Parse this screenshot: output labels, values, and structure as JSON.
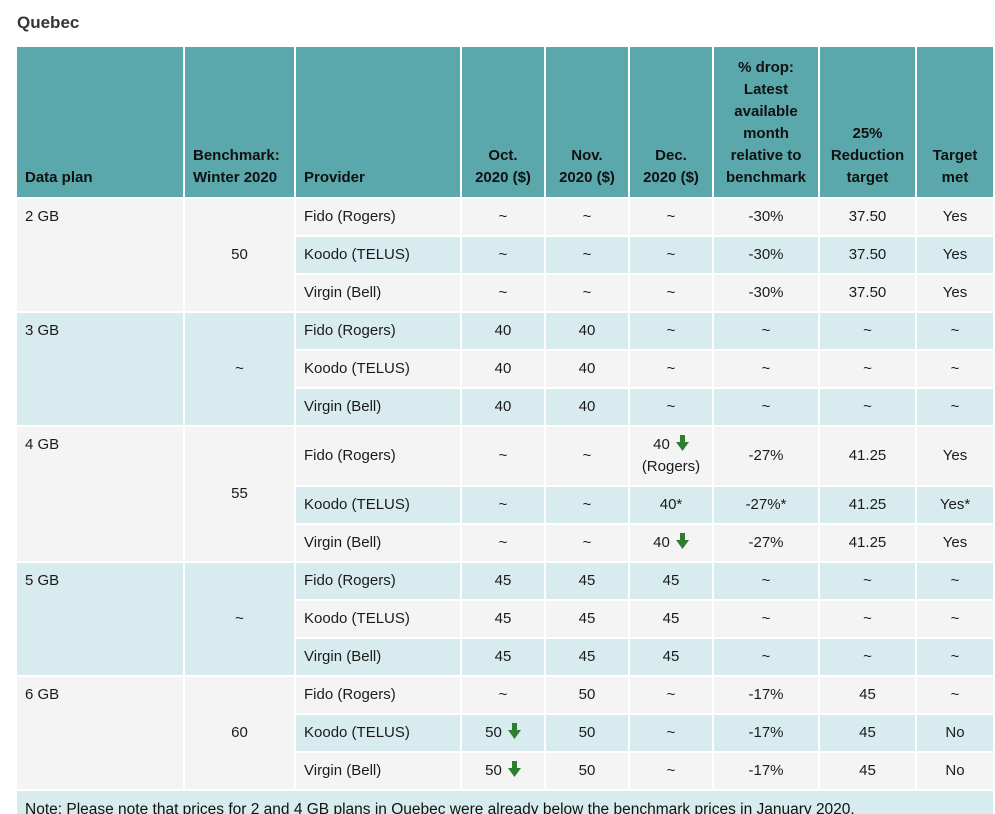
{
  "page": {
    "title": "Quebec"
  },
  "colors": {
    "header_bg": "#5aa7ac",
    "row_gray": "#f4f4f4",
    "row_blue": "#d8ebee",
    "arrow_green": "#2e7d32"
  },
  "icons": {
    "down_arrow": "down-arrow-icon"
  },
  "table": {
    "columns": [
      "Data plan",
      "Benchmark: Winter 2020",
      "Provider",
      "Oct. 2020 ($)",
      "Nov. 2020 ($)",
      "Dec. 2020 ($)",
      "% drop: Latest available month relative to benchmark",
      "25% Reduction target",
      "Target met"
    ],
    "groups": [
      {
        "plan": "2 GB",
        "benchmark": "50",
        "rows": [
          {
            "provider": "Fido (Rogers)",
            "values": [
              {
                "t": "~"
              },
              {
                "t": "~"
              },
              {
                "t": "~"
              },
              {
                "t": "-30%"
              },
              {
                "t": "37.50"
              },
              {
                "t": "Yes"
              }
            ]
          },
          {
            "provider": "Koodo (TELUS)",
            "values": [
              {
                "t": "~"
              },
              {
                "t": "~"
              },
              {
                "t": "~"
              },
              {
                "t": "-30%"
              },
              {
                "t": "37.50"
              },
              {
                "t": "Yes"
              }
            ]
          },
          {
            "provider": "Virgin (Bell)",
            "values": [
              {
                "t": "~"
              },
              {
                "t": "~"
              },
              {
                "t": "~"
              },
              {
                "t": "-30%"
              },
              {
                "t": "37.50"
              },
              {
                "t": "Yes"
              }
            ]
          }
        ]
      },
      {
        "plan": "3 GB",
        "benchmark": "~",
        "rows": [
          {
            "provider": "Fido (Rogers)",
            "values": [
              {
                "t": "40"
              },
              {
                "t": "40"
              },
              {
                "t": "~"
              },
              {
                "t": "~"
              },
              {
                "t": "~"
              },
              {
                "t": "~"
              }
            ]
          },
          {
            "provider": "Koodo (TELUS)",
            "values": [
              {
                "t": "40"
              },
              {
                "t": "40"
              },
              {
                "t": "~"
              },
              {
                "t": "~"
              },
              {
                "t": "~"
              },
              {
                "t": "~"
              }
            ]
          },
          {
            "provider": "Virgin (Bell)",
            "values": [
              {
                "t": "40"
              },
              {
                "t": "40"
              },
              {
                "t": "~"
              },
              {
                "t": "~"
              },
              {
                "t": "~"
              },
              {
                "t": "~"
              }
            ]
          }
        ]
      },
      {
        "plan": "4 GB",
        "benchmark": "55",
        "rows": [
          {
            "provider": "Fido (Rogers)",
            "values": [
              {
                "t": "~"
              },
              {
                "t": "~"
              },
              {
                "t": "40",
                "arrow": true,
                "sub": "(Rogers)"
              },
              {
                "t": "-27%"
              },
              {
                "t": "41.25"
              },
              {
                "t": "Yes"
              }
            ]
          },
          {
            "provider": "Koodo (TELUS)",
            "values": [
              {
                "t": "~"
              },
              {
                "t": "~"
              },
              {
                "t": "40*"
              },
              {
                "t": "-27%*"
              },
              {
                "t": "41.25"
              },
              {
                "t": "Yes*"
              }
            ]
          },
          {
            "provider": "Virgin (Bell)",
            "values": [
              {
                "t": "~"
              },
              {
                "t": "~"
              },
              {
                "t": "40",
                "arrow": true
              },
              {
                "t": "-27%"
              },
              {
                "t": "41.25"
              },
              {
                "t": "Yes"
              }
            ]
          }
        ]
      },
      {
        "plan": "5 GB",
        "benchmark": "~",
        "rows": [
          {
            "provider": "Fido (Rogers)",
            "values": [
              {
                "t": "45"
              },
              {
                "t": "45"
              },
              {
                "t": "45"
              },
              {
                "t": "~"
              },
              {
                "t": "~"
              },
              {
                "t": "~"
              }
            ]
          },
          {
            "provider": "Koodo (TELUS)",
            "values": [
              {
                "t": "45"
              },
              {
                "t": "45"
              },
              {
                "t": "45"
              },
              {
                "t": "~"
              },
              {
                "t": "~"
              },
              {
                "t": "~"
              }
            ]
          },
          {
            "provider": "Virgin (Bell)",
            "values": [
              {
                "t": "45"
              },
              {
                "t": "45"
              },
              {
                "t": "45"
              },
              {
                "t": "~"
              },
              {
                "t": "~"
              },
              {
                "t": "~"
              }
            ]
          }
        ]
      },
      {
        "plan": "6 GB",
        "benchmark": "60",
        "rows": [
          {
            "provider": "Fido (Rogers)",
            "values": [
              {
                "t": "~"
              },
              {
                "t": "50"
              },
              {
                "t": "~"
              },
              {
                "t": "-17%"
              },
              {
                "t": "45"
              },
              {
                "t": "~"
              }
            ]
          },
          {
            "provider": "Koodo (TELUS)",
            "values": [
              {
                "t": "50",
                "arrow": true
              },
              {
                "t": "50"
              },
              {
                "t": "~"
              },
              {
                "t": "-17%"
              },
              {
                "t": "45"
              },
              {
                "t": "No"
              }
            ]
          },
          {
            "provider": "Virgin (Bell)",
            "values": [
              {
                "t": "50",
                "arrow": true
              },
              {
                "t": "50"
              },
              {
                "t": "~"
              },
              {
                "t": "-17%"
              },
              {
                "t": "45"
              },
              {
                "t": "No"
              }
            ]
          }
        ]
      }
    ],
    "note": "Note: Please note that prices for 2 and 4 GB plans in Quebec were already below the benchmark prices in January 2020."
  }
}
